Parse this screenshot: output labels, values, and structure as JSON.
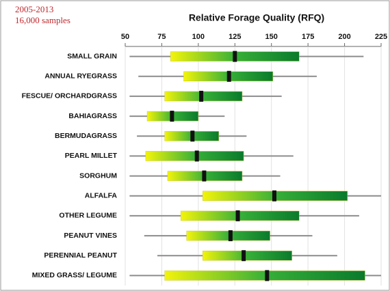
{
  "chart_data": {
    "type": "box",
    "title": "Relative Forage Quality (RFQ)",
    "annotations": [
      "2005-2013",
      "16,000 samples"
    ],
    "categories": [
      "SMALL GRAIN",
      "ANNUAL RYEGRASS",
      "FESCUE/ ORCHARDGRASS",
      "BAHIAGRASS",
      "BERMUDAGRASS",
      "PEARL MILLET",
      "SORGHUM",
      "ALFALFA",
      "OTHER  LEGUME",
      "PEANUT VINES",
      "PERENNIAL PEANUT",
      "MIXED GRASS/ LEGUME"
    ],
    "min": [
      53,
      59,
      53,
      53,
      58,
      53,
      53,
      53,
      53,
      63,
      72,
      53
    ],
    "q1": [
      81,
      90,
      77,
      65,
      77,
      64,
      79,
      103,
      88,
      92,
      103,
      77
    ],
    "median": [
      125,
      121,
      102,
      82,
      96,
      99,
      104,
      152,
      127,
      122,
      131,
      147
    ],
    "q3": [
      169,
      151,
      130,
      100,
      114,
      131,
      130,
      202,
      169,
      149,
      164,
      214
    ],
    "max": [
      213,
      181,
      157,
      118,
      133,
      165,
      156,
      225,
      210,
      178,
      195,
      225
    ],
    "box_colors": [
      "#f4f40a",
      "#38b038",
      "#0a7a2c"
    ],
    "whisker_color": "#8c8c8c",
    "median_color": "#111111",
    "xlim": [
      50,
      225
    ],
    "xticks": [
      50,
      75,
      100,
      125,
      150,
      175,
      200,
      225
    ],
    "grid": true
  }
}
